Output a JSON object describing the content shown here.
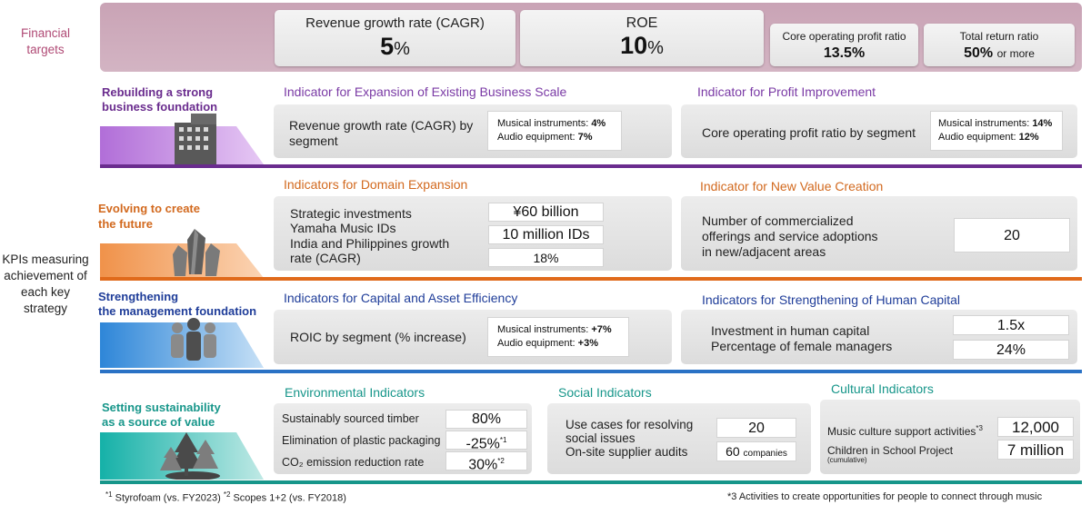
{
  "left": {
    "financial": "Financial targets",
    "kpi": "KPIs measuring achievement of each key strategy"
  },
  "financial": {
    "cagr": {
      "label": "Revenue growth rate (CAGR)",
      "value": "5",
      "unit": "%"
    },
    "roe": {
      "label": "ROE",
      "value": "10",
      "unit": "%"
    },
    "core": {
      "label": "Core operating profit ratio",
      "value": "13.5%"
    },
    "total": {
      "label": "Total return ratio",
      "value": "50%",
      "suffix": "or more"
    }
  },
  "s1": {
    "title1": "Rebuilding a strong",
    "title2": "business foundation",
    "color": "#6a2c8e",
    "left": {
      "heading": "Indicator for Expansion of Existing Business Scale",
      "text1": "Revenue growth rate (CAGR) by",
      "text2": "segment",
      "mi_label": "Musical instruments: ",
      "mi_val": "4%",
      "ae_label": "Audio equipment: ",
      "ae_val": "7%"
    },
    "right": {
      "heading": "Indicator for Profit Improvement",
      "text": "Core operating profit ratio by segment",
      "mi_label": "Musical instruments: ",
      "mi_val": "14%",
      "ae_label": "Audio equipment: ",
      "ae_val": "12%"
    }
  },
  "s2": {
    "title1": "Evolving to create",
    "title2": "the future",
    "color": "#d2691e",
    "left": {
      "heading": "Indicators for Domain Expansion",
      "item1": "Strategic investments",
      "item2": "Yamaha Music IDs",
      "item3a": "India and Philippines growth",
      "item3b": "rate (CAGR)",
      "v1": "¥60 billion",
      "v2": "10 million IDs",
      "v3": "18%"
    },
    "right": {
      "heading": "Indicator for New Value Creation",
      "text1": "Number of commercialized",
      "text2": "offerings and service adoptions",
      "text3": "in new/adjacent areas",
      "value": "20"
    }
  },
  "s3": {
    "title1": "Strengthening",
    "title2": "the management foundation",
    "color": "#1f3d99",
    "left": {
      "heading": "Indicators for Capital and Asset Efficiency",
      "text": "ROIC by segment (% increase)",
      "mi_label": "Musical instruments: ",
      "mi_val": "+7%",
      "ae_label": "Audio equipment: ",
      "ae_val": "+3%"
    },
    "right": {
      "heading": "Indicators for Strengthening of Human Capital",
      "text1": "Investment in human capital",
      "text2": "Percentage of female managers",
      "v1": "1.5x",
      "v2": "24%"
    }
  },
  "s4": {
    "title1": "Setting sustainability",
    "title2": "as a source of value",
    "color": "#17968a",
    "env": {
      "heading": "Environmental Indicators",
      "r1": "Sustainably sourced timber",
      "r2": "Elimination of plastic packaging",
      "r3": "CO₂ emission reduction rate",
      "v1": "80%",
      "v2": "-25%",
      "n2": "*1",
      "v3": "30%",
      "n3": "*2"
    },
    "social": {
      "heading": "Social Indicators",
      "t1": "Use cases for resolving",
      "t2": "social issues",
      "t3": "On-site supplier audits",
      "v1": "20",
      "v2": "60",
      "v2unit": "companies"
    },
    "cultural": {
      "heading": "Cultural Indicators",
      "r1": "Music culture support activities",
      "n1": "*3",
      "r2": "Children in School Project",
      "r2sub": "(cumulative)",
      "v1": "12,000",
      "v2": "7 million"
    }
  },
  "footnotes": {
    "n1": "*1",
    "t1": " Styrofoam (vs. FY2023) ",
    "n2": "*2",
    "t2": " Scopes 1+2 (vs. FY2018)",
    "right": "*3 Activities to create opportunities for people to connect through music"
  }
}
